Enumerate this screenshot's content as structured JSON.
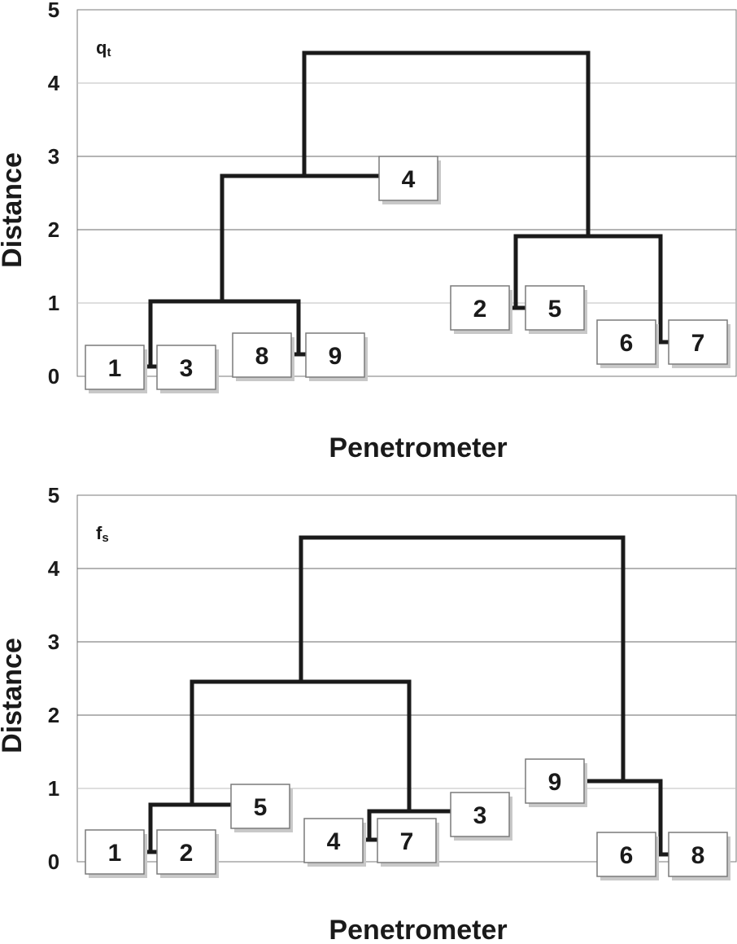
{
  "chart_data": [
    {
      "type": "dendrogram",
      "panel_label": {
        "main": "q",
        "sub": "t"
      },
      "ylabel": "Distance",
      "xlabel": "Penetrometer",
      "ylim": [
        0,
        5
      ],
      "yticks": [
        "0",
        "1",
        "2",
        "3",
        "4",
        "5"
      ],
      "grid": true,
      "leaves": [
        {
          "label": "1",
          "height": 0.1
        },
        {
          "label": "3",
          "height": 0.1
        },
        {
          "label": "8",
          "height": 0.3
        },
        {
          "label": "9",
          "height": 0.3
        },
        {
          "label": "4",
          "height": 2.7
        },
        {
          "label": "2",
          "height": 0.95
        },
        {
          "label": "5",
          "height": 0.95
        },
        {
          "label": "6",
          "height": 0.45
        },
        {
          "label": "7",
          "height": 0.45
        }
      ],
      "merges": [
        {
          "left": "1",
          "right": "3",
          "height": 0.13
        },
        {
          "left": "8",
          "right": "9",
          "height": 0.3
        },
        {
          "left": "1+3",
          "right": "8+9",
          "height": 1.03
        },
        {
          "left": "1+3+8+9",
          "right": "4",
          "height": 2.7
        },
        {
          "left": "2",
          "right": "5",
          "height": 0.95
        },
        {
          "left": "6",
          "right": "7",
          "height": 0.47
        },
        {
          "left": "2+5",
          "right": "6+7",
          "height": 1.9
        },
        {
          "left": "1+3+8+9+4",
          "right": "2+5+6+7",
          "height": 4.42
        }
      ]
    },
    {
      "type": "dendrogram",
      "panel_label": {
        "main": "f",
        "sub": "s"
      },
      "ylabel": "Distance",
      "xlabel": "Penetrometer",
      "ylim": [
        0,
        5
      ],
      "yticks": [
        "0",
        "1",
        "2",
        "3",
        "4",
        "5"
      ],
      "grid": true,
      "leaves": [
        {
          "label": "1",
          "height": 0.1
        },
        {
          "label": "2",
          "height": 0.1
        },
        {
          "label": "5",
          "height": 0.75
        },
        {
          "label": "4",
          "height": 0.25
        },
        {
          "label": "7",
          "height": 0.25
        },
        {
          "label": "3",
          "height": 0.65
        },
        {
          "label": "9",
          "height": 1.1
        },
        {
          "label": "6",
          "height": 0.05
        },
        {
          "label": "8",
          "height": 0.05
        }
      ],
      "merges": [
        {
          "left": "1",
          "right": "2",
          "height": 0.12
        },
        {
          "left": "1+2",
          "right": "5",
          "height": 0.77
        },
        {
          "left": "4",
          "right": "7",
          "height": 0.28
        },
        {
          "left": "4+7",
          "right": "3",
          "height": 0.65
        },
        {
          "left": "1+2+5",
          "right": "4+7+3",
          "height": 2.44
        },
        {
          "left": "6",
          "right": "8",
          "height": 0.06
        },
        {
          "left": "6+8",
          "right": "9",
          "height": 1.1
        },
        {
          "left": "1+2+5+4+7+3",
          "right": "6+8+9",
          "height": 4.42
        }
      ]
    }
  ]
}
